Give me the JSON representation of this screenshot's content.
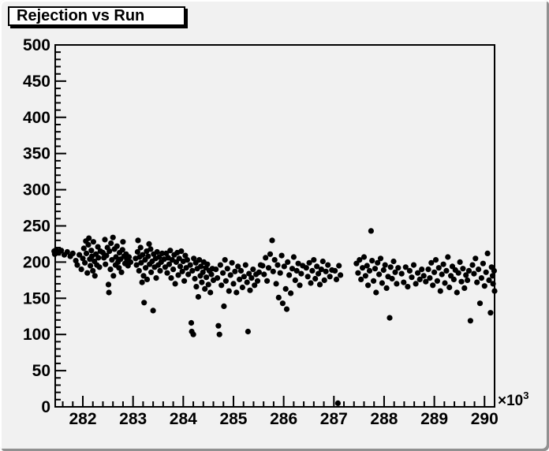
{
  "canvas": {
    "background": "#f1f1f1",
    "border_highlight": "#ffffff",
    "border_shadow": "#909090"
  },
  "title": {
    "text": "Rejection vs Run",
    "background": "#ffffff",
    "border_color": "#000000",
    "shadow_color": "#000000"
  },
  "chart_data": {
    "type": "scatter",
    "title": "Rejection vs Run",
    "xlabel": "",
    "ylabel": "",
    "xlim": [
      281.45,
      290.2
    ],
    "ylim": [
      0,
      500
    ],
    "x_major_ticks": [
      282,
      283,
      284,
      285,
      286,
      287,
      288,
      289,
      290
    ],
    "x_minor_step": 0.2,
    "y_major_ticks": [
      0,
      50,
      100,
      150,
      200,
      250,
      300,
      350,
      400,
      450,
      500
    ],
    "y_minor_step": 10,
    "x_exponent": {
      "prefix": "×10",
      "exp": "3"
    },
    "marker": {
      "shape": "filled-circle",
      "color": "#000000",
      "radius_px": 3.6
    },
    "grid": false,
    "points": [
      [
        281.43,
        215
      ],
      [
        281.44,
        211
      ],
      [
        281.47,
        217
      ],
      [
        281.52,
        213
      ],
      [
        281.57,
        216
      ],
      [
        281.63,
        210
      ],
      [
        281.69,
        214
      ],
      [
        281.75,
        208
      ],
      [
        281.8,
        212
      ],
      [
        281.86,
        202
      ],
      [
        281.89,
        196
      ],
      [
        281.93,
        210
      ],
      [
        281.97,
        190
      ],
      [
        282.0,
        205
      ],
      [
        282.02,
        219
      ],
      [
        282.04,
        199
      ],
      [
        282.06,
        229
      ],
      [
        282.07,
        212
      ],
      [
        282.09,
        185
      ],
      [
        282.11,
        224
      ],
      [
        282.12,
        233
      ],
      [
        282.14,
        204
      ],
      [
        282.15,
        195
      ],
      [
        282.17,
        216
      ],
      [
        282.18,
        208
      ],
      [
        282.2,
        188
      ],
      [
        282.21,
        228
      ],
      [
        282.23,
        201
      ],
      [
        282.24,
        181
      ],
      [
        282.26,
        211
      ],
      [
        282.28,
        196
      ],
      [
        282.3,
        221
      ],
      [
        282.31,
        206
      ],
      [
        282.33,
        193
      ],
      [
        282.35,
        215
      ],
      [
        282.4,
        213
      ],
      [
        282.42,
        206
      ],
      [
        282.44,
        231
      ],
      [
        282.45,
        197
      ],
      [
        282.47,
        209
      ],
      [
        282.49,
        220
      ],
      [
        282.51,
        169
      ],
      [
        282.52,
        158
      ],
      [
        282.53,
        215
      ],
      [
        282.55,
        190
      ],
      [
        282.56,
        226
      ],
      [
        282.58,
        203
      ],
      [
        282.6,
        234
      ],
      [
        282.61,
        181
      ],
      [
        282.63,
        218
      ],
      [
        282.65,
        196
      ],
      [
        282.66,
        207
      ],
      [
        282.68,
        222
      ],
      [
        282.7,
        200
      ],
      [
        282.72,
        192
      ],
      [
        282.73,
        213
      ],
      [
        282.75,
        204
      ],
      [
        282.77,
        186
      ],
      [
        282.79,
        217
      ],
      [
        282.8,
        228
      ],
      [
        282.82,
        208
      ],
      [
        282.84,
        198
      ],
      [
        282.86,
        211
      ],
      [
        282.88,
        203
      ],
      [
        282.9,
        195
      ],
      [
        282.92,
        207
      ],
      [
        282.95,
        200
      ],
      [
        283.05,
        205
      ],
      [
        283.07,
        196
      ],
      [
        283.09,
        214
      ],
      [
        283.1,
        230
      ],
      [
        283.12,
        188
      ],
      [
        283.13,
        207
      ],
      [
        283.15,
        220
      ],
      [
        283.16,
        199
      ],
      [
        283.18,
        172
      ],
      [
        283.19,
        210
      ],
      [
        283.21,
        181
      ],
      [
        283.22,
        144
      ],
      [
        283.24,
        203
      ],
      [
        283.25,
        192
      ],
      [
        283.27,
        215
      ],
      [
        283.28,
        176
      ],
      [
        283.3,
        208
      ],
      [
        283.32,
        225
      ],
      [
        283.33,
        197
      ],
      [
        283.35,
        218
      ],
      [
        283.36,
        186
      ],
      [
        283.38,
        201
      ],
      [
        283.4,
        133
      ],
      [
        283.41,
        211
      ],
      [
        283.43,
        193
      ],
      [
        283.45,
        205
      ],
      [
        283.46,
        178
      ],
      [
        283.48,
        214
      ],
      [
        283.5,
        196
      ],
      [
        283.52,
        207
      ],
      [
        283.54,
        188
      ],
      [
        283.56,
        200
      ],
      [
        283.58,
        212
      ],
      [
        283.62,
        204
      ],
      [
        283.64,
        193
      ],
      [
        283.66,
        212
      ],
      [
        283.68,
        185
      ],
      [
        283.7,
        206
      ],
      [
        283.72,
        197
      ],
      [
        283.74,
        216
      ],
      [
        283.76,
        178
      ],
      [
        283.78,
        203
      ],
      [
        283.8,
        190
      ],
      [
        283.82,
        210
      ],
      [
        283.84,
        170
      ],
      [
        283.86,
        200
      ],
      [
        283.88,
        213
      ],
      [
        283.9,
        182
      ],
      [
        283.92,
        205
      ],
      [
        283.94,
        194
      ],
      [
        283.96,
        215
      ],
      [
        283.98,
        187
      ],
      [
        284.0,
        201
      ],
      [
        284.02,
        174
      ],
      [
        284.04,
        209
      ],
      [
        284.06,
        192
      ],
      [
        284.08,
        203
      ],
      [
        284.1,
        183
      ],
      [
        284.14,
        196
      ],
      [
        284.16,
        116
      ],
      [
        284.17,
        104
      ],
      [
        284.18,
        188
      ],
      [
        284.2,
        100
      ],
      [
        284.21,
        205
      ],
      [
        284.23,
        177
      ],
      [
        284.25,
        199
      ],
      [
        284.26,
        166
      ],
      [
        284.28,
        191
      ],
      [
        284.3,
        152
      ],
      [
        284.32,
        203
      ],
      [
        284.34,
        181
      ],
      [
        284.35,
        194
      ],
      [
        284.37,
        172
      ],
      [
        284.39,
        186
      ],
      [
        284.41,
        200
      ],
      [
        284.43,
        163
      ],
      [
        284.45,
        192
      ],
      [
        284.46,
        179
      ],
      [
        284.48,
        197
      ],
      [
        284.5,
        169
      ],
      [
        284.52,
        188
      ],
      [
        284.54,
        158
      ],
      [
        284.56,
        183
      ],
      [
        284.58,
        191
      ],
      [
        284.6,
        175
      ],
      [
        284.65,
        190
      ],
      [
        284.68,
        178
      ],
      [
        284.7,
        112
      ],
      [
        284.72,
        100
      ],
      [
        284.74,
        196
      ],
      [
        284.76,
        168
      ],
      [
        284.79,
        185
      ],
      [
        284.81,
        139
      ],
      [
        284.83,
        203
      ],
      [
        284.85,
        174
      ],
      [
        284.88,
        191
      ],
      [
        284.91,
        160
      ],
      [
        284.94,
        182
      ],
      [
        284.97,
        199
      ],
      [
        285.0,
        170
      ],
      [
        285.03,
        187
      ],
      [
        285.06,
        158
      ],
      [
        285.09,
        194
      ],
      [
        285.12,
        176
      ],
      [
        285.15,
        188
      ],
      [
        285.18,
        165
      ],
      [
        285.21,
        180
      ],
      [
        285.24,
        196
      ],
      [
        285.27,
        172
      ],
      [
        285.29,
        104
      ],
      [
        285.31,
        184
      ],
      [
        285.33,
        161
      ],
      [
        285.36,
        178
      ],
      [
        285.39,
        190
      ],
      [
        285.42,
        168
      ],
      [
        285.45,
        183
      ],
      [
        285.48,
        174
      ],
      [
        285.51,
        186
      ],
      [
        285.54,
        196
      ],
      [
        285.58,
        195
      ],
      [
        285.61,
        183
      ],
      [
        285.64,
        206
      ],
      [
        285.67,
        174
      ],
      [
        285.7,
        192
      ],
      [
        285.73,
        211
      ],
      [
        285.77,
        230
      ],
      [
        285.79,
        187
      ],
      [
        285.82,
        203
      ],
      [
        285.85,
        170
      ],
      [
        285.88,
        196
      ],
      [
        285.9,
        151
      ],
      [
        285.93,
        185
      ],
      [
        285.96,
        209
      ],
      [
        285.98,
        143
      ],
      [
        286.01,
        194
      ],
      [
        286.04,
        163
      ],
      [
        286.06,
        135
      ],
      [
        286.08,
        200
      ],
      [
        286.11,
        182
      ],
      [
        286.14,
        157
      ],
      [
        286.17,
        191
      ],
      [
        286.2,
        207
      ],
      [
        286.23,
        175
      ],
      [
        286.26,
        188
      ],
      [
        286.29,
        198
      ],
      [
        286.32,
        168
      ],
      [
        286.35,
        184
      ],
      [
        286.38,
        195
      ],
      [
        286.45,
        192
      ],
      [
        286.48,
        180
      ],
      [
        286.51,
        199
      ],
      [
        286.54,
        171
      ],
      [
        286.57,
        188
      ],
      [
        286.6,
        203
      ],
      [
        286.63,
        177
      ],
      [
        286.66,
        194
      ],
      [
        286.69,
        184
      ],
      [
        286.72,
        169
      ],
      [
        286.75,
        190
      ],
      [
        286.78,
        201
      ],
      [
        286.81,
        175
      ],
      [
        286.84,
        187
      ],
      [
        286.88,
        196
      ],
      [
        286.92,
        180
      ],
      [
        286.96,
        189
      ],
      [
        287.02,
        188
      ],
      [
        287.05,
        176
      ],
      [
        287.08,
        5
      ],
      [
        287.1,
        195
      ],
      [
        287.13,
        182
      ],
      [
        287.45,
        198
      ],
      [
        287.48,
        185
      ],
      [
        287.51,
        203
      ],
      [
        287.54,
        176
      ],
      [
        287.57,
        192
      ],
      [
        287.6,
        207
      ],
      [
        287.63,
        181
      ],
      [
        287.66,
        195
      ],
      [
        287.68,
        168
      ],
      [
        287.71,
        188
      ],
      [
        287.74,
        243
      ],
      [
        287.76,
        202
      ],
      [
        287.79,
        174
      ],
      [
        287.82,
        191
      ],
      [
        287.84,
        158
      ],
      [
        287.87,
        199
      ],
      [
        287.9,
        183
      ],
      [
        287.93,
        205
      ],
      [
        287.96,
        171
      ],
      [
        287.99,
        189
      ],
      [
        288.02,
        196
      ],
      [
        288.05,
        164
      ],
      [
        288.08,
        180
      ],
      [
        288.11,
        123
      ],
      [
        288.13,
        193
      ],
      [
        288.16,
        177
      ],
      [
        288.19,
        201
      ],
      [
        288.22,
        186
      ],
      [
        288.25,
        170
      ],
      [
        288.28,
        192
      ],
      [
        288.35,
        184
      ],
      [
        288.39,
        172
      ],
      [
        288.43,
        193
      ],
      [
        288.47,
        166
      ],
      [
        288.51,
        188
      ],
      [
        288.55,
        179
      ],
      [
        288.59,
        196
      ],
      [
        288.63,
        170
      ],
      [
        288.67,
        185
      ],
      [
        288.71,
        176
      ],
      [
        288.75,
        190
      ],
      [
        288.79,
        181
      ],
      [
        288.83,
        173
      ],
      [
        288.88,
        190
      ],
      [
        288.91,
        178
      ],
      [
        288.94,
        199
      ],
      [
        288.97,
        168
      ],
      [
        289.0,
        186
      ],
      [
        289.03,
        203
      ],
      [
        289.06,
        174
      ],
      [
        289.09,
        192
      ],
      [
        289.12,
        160
      ],
      [
        289.15,
        183
      ],
      [
        289.18,
        197
      ],
      [
        289.21,
        171
      ],
      [
        289.24,
        188
      ],
      [
        289.27,
        207
      ],
      [
        289.3,
        165
      ],
      [
        289.33,
        181
      ],
      [
        289.36,
        194
      ],
      [
        289.39,
        176
      ],
      [
        289.42,
        189
      ],
      [
        289.45,
        158
      ],
      [
        289.48,
        185
      ],
      [
        289.51,
        200
      ],
      [
        289.54,
        173
      ],
      [
        289.57,
        191
      ],
      [
        289.6,
        164
      ],
      [
        289.63,
        182
      ],
      [
        289.66,
        175
      ],
      [
        289.69,
        188
      ],
      [
        289.72,
        119
      ],
      [
        289.76,
        196
      ],
      [
        289.79,
        184
      ],
      [
        289.82,
        205
      ],
      [
        289.85,
        172
      ],
      [
        289.88,
        190
      ],
      [
        289.91,
        143
      ],
      [
        289.94,
        178
      ],
      [
        289.97,
        198
      ],
      [
        290.0,
        167
      ],
      [
        290.03,
        186
      ],
      [
        290.06,
        212
      ],
      [
        290.09,
        175
      ],
      [
        290.12,
        130
      ],
      [
        290.14,
        193
      ],
      [
        290.16,
        181
      ],
      [
        290.17,
        170
      ],
      [
        290.19,
        188
      ],
      [
        290.2,
        160
      ]
    ]
  }
}
